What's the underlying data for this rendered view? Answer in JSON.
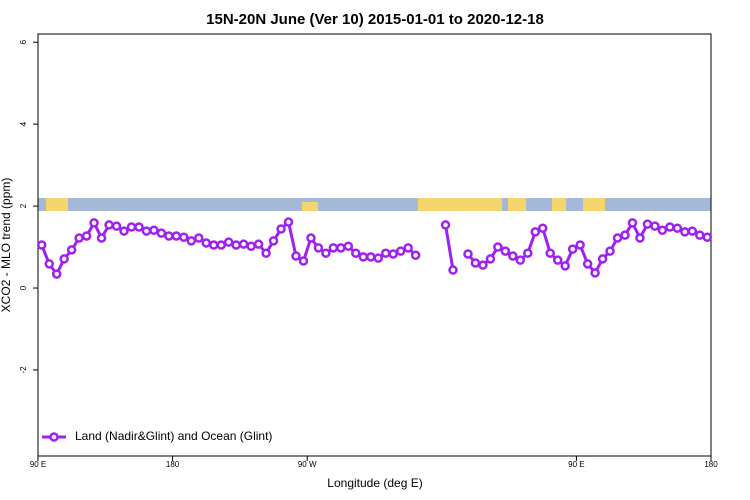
{
  "chart_data": {
    "type": "line",
    "title": "15N-20N June (Ver 10)   2015-01-01 to 2020-12-18",
    "x_label": "Longitude (deg E)",
    "y_label": "XCO2 - MLO trend (ppm)",
    "xlim": [
      90,
      540
    ],
    "ylim": [
      -4.1,
      6.2
    ],
    "xticks": [
      {
        "value": 90,
        "label": "90 E"
      },
      180,
      {
        "value": 270,
        "label": "90 W"
      },
      {
        "value": 450,
        "label": "90 E"
      },
      {
        "value": 540,
        "label": "180"
      }
    ],
    "yticks": [
      -2,
      0,
      2,
      4,
      6
    ],
    "legend": "bottomleft",
    "x": [
      92.5,
      97.5,
      102.5,
      107.5,
      112.5,
      117.5,
      122.5,
      127.5,
      132.5,
      137.5,
      142.5,
      147.5,
      152.5,
      157.5,
      162.5,
      167.5,
      172.5,
      177.5,
      182.5,
      187.5,
      192.5,
      197.5,
      202.5,
      207.5,
      212.5,
      217.5,
      222.5,
      227.5,
      232.5,
      237.5,
      242.5,
      247.5,
      252.5,
      257.5,
      262.5,
      267.5,
      272.5,
      277.5,
      282.5,
      287.5,
      292.5,
      297.5,
      302.5,
      307.5,
      312.5,
      317.5,
      322.5,
      327.5,
      332.5,
      337.5,
      342.5,
      347.5,
      352.5,
      357.5,
      362.5,
      367.5,
      372.5,
      377.5,
      382.5,
      387.5,
      392.5,
      397.5,
      402.5,
      407.5,
      412.5,
      417.5,
      422.5,
      427.5,
      432.5,
      437.5,
      442.5,
      447.5,
      452.5,
      457.5,
      462.5,
      467.5,
      472.5,
      477.5,
      482.5,
      487.5,
      492.5,
      497.5,
      502.5,
      507.5,
      512.5,
      517.5,
      522.5,
      527.5,
      532.5,
      537.5
    ],
    "series": [
      {
        "name": "Land (Nadir&Glint) and Ocean (Glint)",
        "color": "#a020f0",
        "values": [
          1.05,
          0.59,
          0.34,
          0.71,
          0.93,
          1.22,
          1.27,
          1.59,
          1.22,
          1.54,
          1.51,
          1.39,
          1.49,
          1.49,
          1.39,
          1.41,
          1.34,
          1.27,
          1.27,
          1.24,
          1.15,
          1.22,
          1.1,
          1.05,
          1.05,
          1.12,
          1.05,
          1.07,
          1.02,
          1.07,
          0.85,
          1.15,
          1.44,
          1.61,
          0.78,
          0.66,
          1.22,
          0.98,
          0.85,
          0.98,
          0.98,
          1.02,
          0.85,
          0.76,
          0.76,
          0.73,
          0.85,
          0.83,
          0.9,
          0.98,
          0.8,
          null,
          null,
          null,
          1.54,
          0.44,
          null,
          0.83,
          0.61,
          0.56,
          0.71,
          1.0,
          0.9,
          0.78,
          0.68,
          0.85,
          1.37,
          1.46,
          0.85,
          0.68,
          0.54,
          0.95,
          1.05,
          0.59,
          0.37,
          0.71,
          0.9,
          1.22,
          1.29,
          1.59,
          1.22,
          1.56,
          1.51,
          1.41,
          1.49,
          1.46,
          1.37,
          1.39,
          1.29,
          1.24
        ]
      }
    ]
  }
}
